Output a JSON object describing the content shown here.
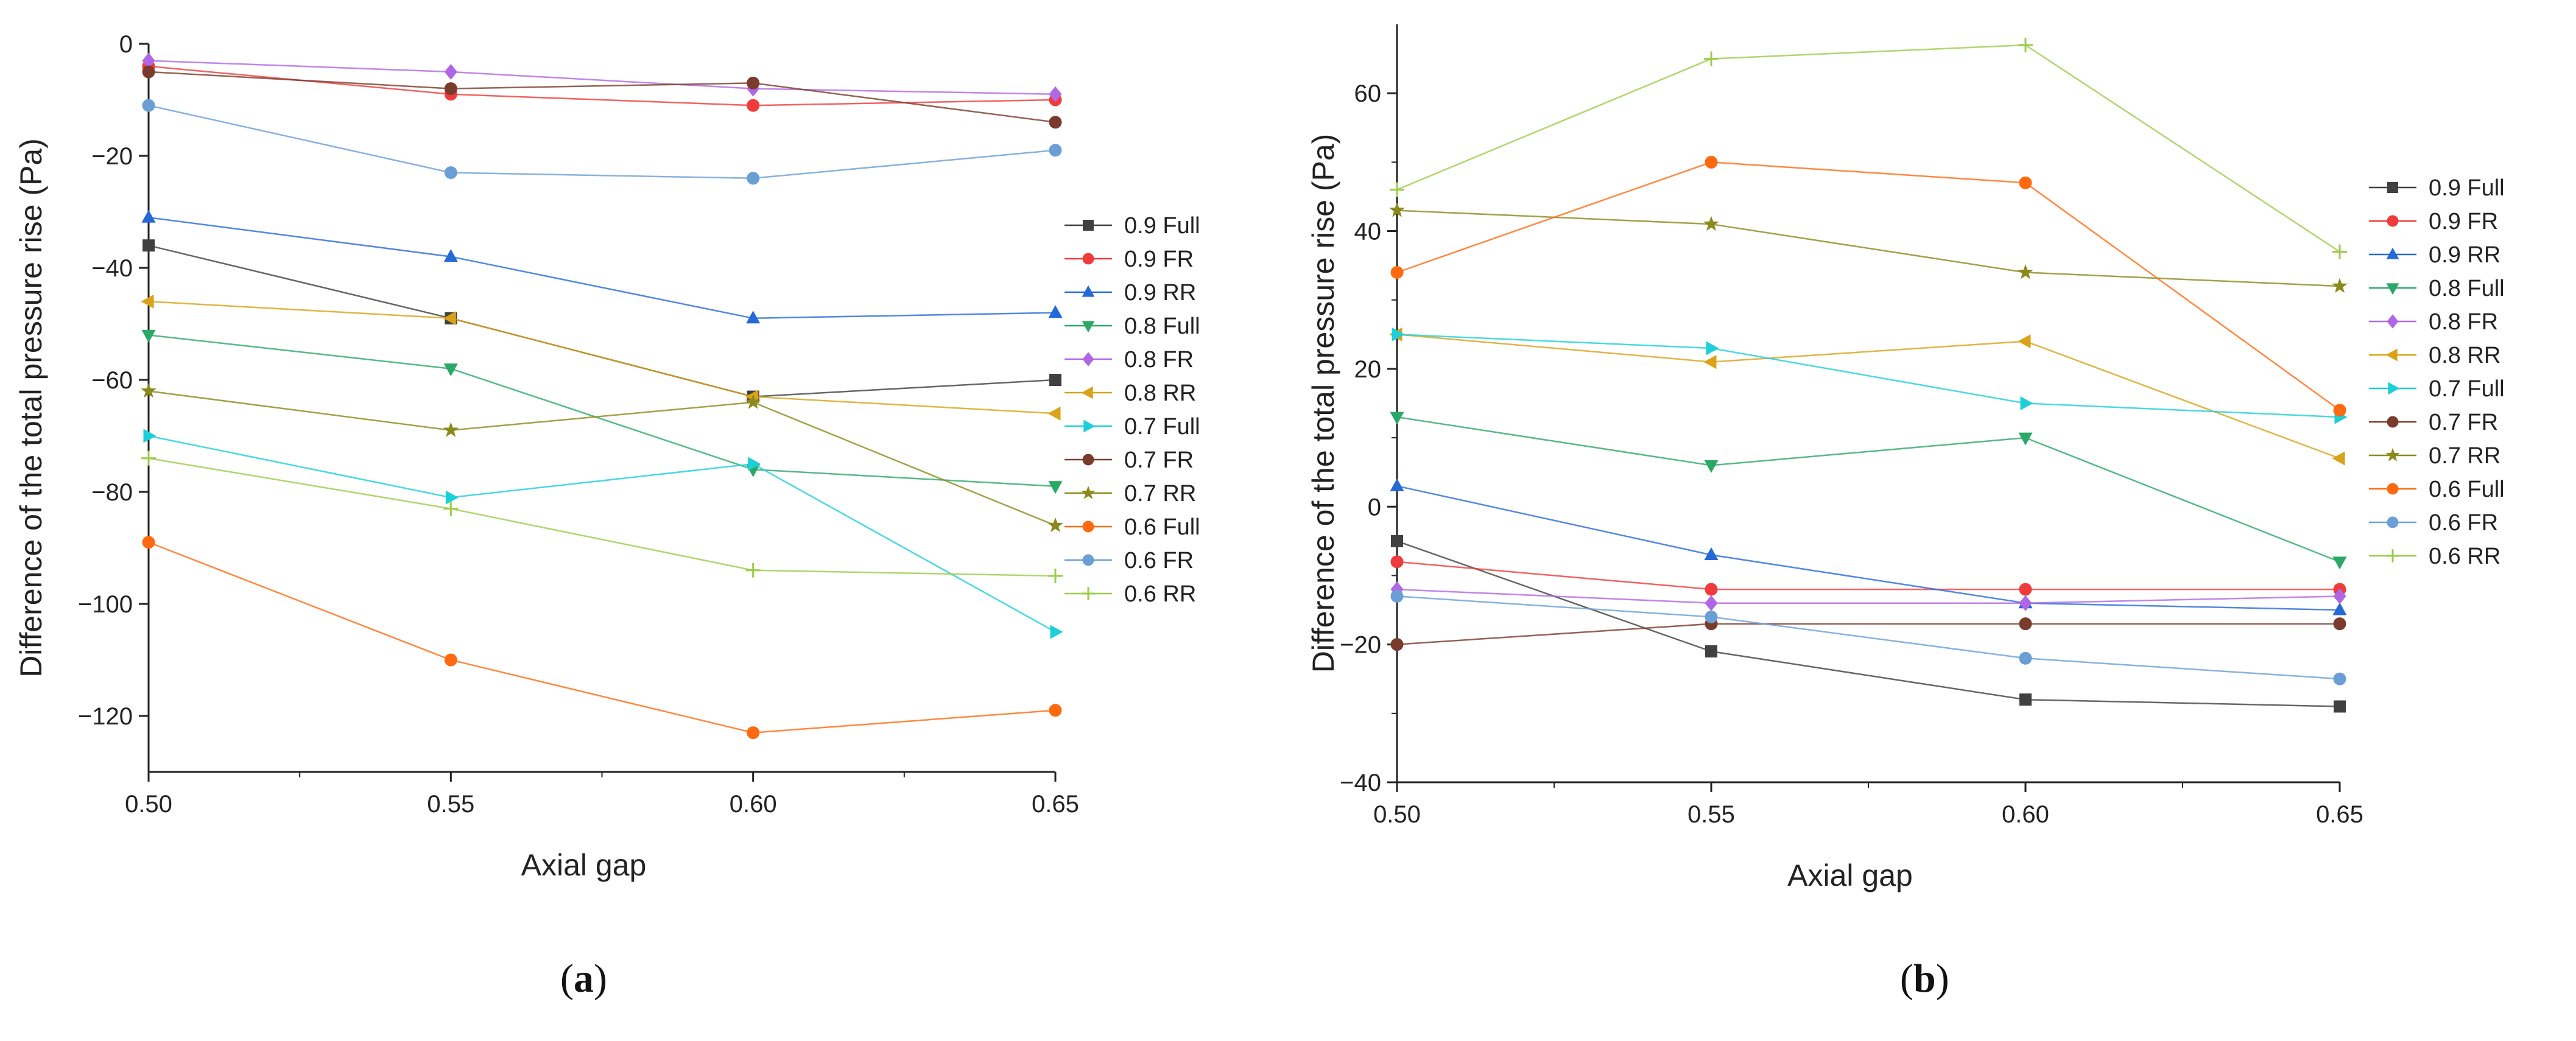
{
  "panel_labels": [
    "a",
    "b"
  ],
  "chart_data": [
    {
      "type": "line",
      "panel": "a",
      "xlabel": "Axial gap",
      "ylabel": "Difference of the total pressure rise (Pa)",
      "x": [
        0.5,
        0.55,
        0.6,
        0.65
      ],
      "x_tick_labels": [
        "0.50",
        "0.55",
        "0.60",
        "0.65"
      ],
      "xlim": [
        0.5,
        0.65
      ],
      "ylim": [
        -130,
        0
      ],
      "y_ticks": [
        0,
        -20,
        -40,
        -60,
        -80,
        -100,
        -120
      ],
      "legend_position": "right",
      "series": [
        {
          "name": "0.9 Full",
          "color": "#404040",
          "marker": "square",
          "values": [
            -36,
            -49,
            -63,
            -60
          ]
        },
        {
          "name": "0.9 FR",
          "color": "#ef3b3b",
          "marker": "circle",
          "values": [
            -4,
            -9,
            -11,
            -10
          ]
        },
        {
          "name": "0.9 RR",
          "color": "#2569d9",
          "marker": "triangle-up",
          "values": [
            -31,
            -38,
            -49,
            -48
          ]
        },
        {
          "name": "0.8 Full",
          "color": "#2aa866",
          "marker": "triangle-down",
          "values": [
            -52,
            -58,
            -76,
            -79
          ]
        },
        {
          "name": "0.8 FR",
          "color": "#b067e6",
          "marker": "diamond",
          "values": [
            -3,
            -5,
            -8,
            -9
          ]
        },
        {
          "name": "0.8 RR",
          "color": "#d8a318",
          "marker": "triangle-left",
          "values": [
            -46,
            -49,
            -63,
            -66
          ]
        },
        {
          "name": "0.7 Full",
          "color": "#1ccfd8",
          "marker": "triangle-right",
          "values": [
            -70,
            -81,
            -75,
            -105
          ]
        },
        {
          "name": "0.7 FR",
          "color": "#7a3b2c",
          "marker": "circle",
          "values": [
            -5,
            -8,
            -7,
            -14
          ]
        },
        {
          "name": "0.7 RR",
          "color": "#8a8a1c",
          "marker": "star",
          "values": [
            -62,
            -69,
            -64,
            -86
          ]
        },
        {
          "name": "0.6 Full",
          "color": "#ff6a10",
          "marker": "circle",
          "values": [
            -89,
            -110,
            -123,
            -119
          ]
        },
        {
          "name": "0.6 FR",
          "color": "#6a9fd6",
          "marker": "circle",
          "values": [
            -11,
            -23,
            -24,
            -19
          ]
        },
        {
          "name": "0.6 RR",
          "color": "#9ccc48",
          "marker": "plus",
          "values": [
            -74,
            -83,
            -94,
            -95
          ]
        }
      ]
    },
    {
      "type": "line",
      "panel": "b",
      "xlabel": "Axial gap",
      "ylabel": "Difference of the total pressure rise (Pa)",
      "x": [
        0.5,
        0.55,
        0.6,
        0.65
      ],
      "x_tick_labels": [
        "0.50",
        "0.55",
        "0.60",
        "0.65"
      ],
      "xlim": [
        0.5,
        0.65
      ],
      "ylim": [
        -40,
        70
      ],
      "y_ticks": [
        60,
        40,
        20,
        0,
        -20,
        -40
      ],
      "legend_position": "right",
      "series": [
        {
          "name": "0.9 Full",
          "color": "#404040",
          "marker": "square",
          "values": [
            -5,
            -21,
            -28,
            -29
          ]
        },
        {
          "name": "0.9 FR",
          "color": "#ef3b3b",
          "marker": "circle",
          "values": [
            -8,
            -12,
            -12,
            -12
          ]
        },
        {
          "name": "0.9 RR",
          "color": "#2569d9",
          "marker": "triangle-up",
          "values": [
            3,
            -7,
            -14,
            -15
          ]
        },
        {
          "name": "0.8 Full",
          "color": "#2aa866",
          "marker": "triangle-down",
          "values": [
            13,
            6,
            10,
            -8
          ]
        },
        {
          "name": "0.8 FR",
          "color": "#b067e6",
          "marker": "diamond",
          "values": [
            -12,
            -14,
            -14,
            -13
          ]
        },
        {
          "name": "0.8 RR",
          "color": "#d8a318",
          "marker": "triangle-left",
          "values": [
            25,
            21,
            24,
            7
          ]
        },
        {
          "name": "0.7 Full",
          "color": "#1ccfd8",
          "marker": "triangle-right",
          "values": [
            25,
            23,
            15,
            13
          ]
        },
        {
          "name": "0.7 FR",
          "color": "#7a3b2c",
          "marker": "circle",
          "values": [
            -20,
            -17,
            -17,
            -17
          ]
        },
        {
          "name": "0.7 RR",
          "color": "#8a8a1c",
          "marker": "star",
          "values": [
            43,
            41,
            34,
            32
          ]
        },
        {
          "name": "0.6 Full",
          "color": "#ff6a10",
          "marker": "circle",
          "values": [
            34,
            50,
            47,
            14
          ]
        },
        {
          "name": "0.6 FR",
          "color": "#6a9fd6",
          "marker": "circle",
          "values": [
            -13,
            -16,
            -22,
            -25
          ]
        },
        {
          "name": "0.6 RR",
          "color": "#9ccc48",
          "marker": "plus",
          "values": [
            46,
            65,
            67,
            37
          ]
        }
      ]
    }
  ]
}
